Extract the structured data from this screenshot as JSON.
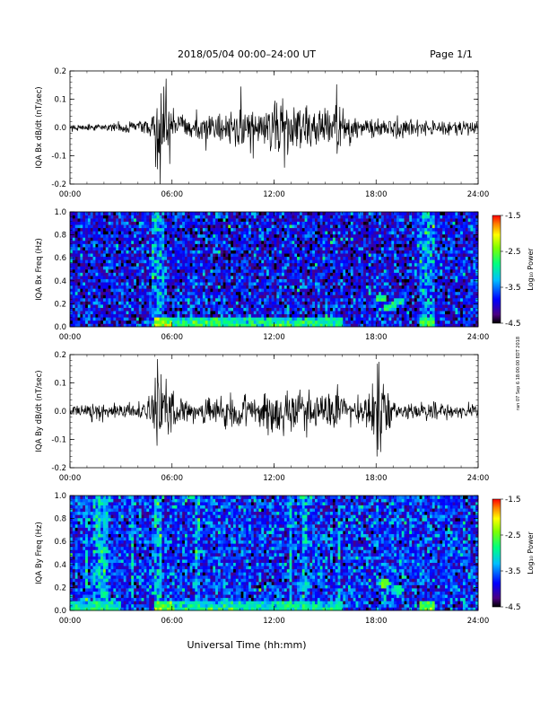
{
  "header": {
    "title": "2018/05/04  00:00–24:00 UT",
    "page": "Page 1/1"
  },
  "side_note": "ran 07 Sep 6 18:00:00 EDT 2018",
  "colorbar": {
    "label": "Log₁₀ Power",
    "ticks": [
      "-1.5",
      "-2.5",
      "-3.5",
      "-4.5"
    ],
    "range": [
      -4.5,
      -1.5
    ]
  },
  "xaxis_title": "Universal Time (hh:mm)",
  "chart_data": [
    {
      "type": "line",
      "ylabel": "IQA Bx dB/dt (nT/sec)",
      "xlim": [
        0,
        24
      ],
      "ylim": [
        -0.2,
        0.2
      ],
      "x_ticks": [
        "00:00",
        "06:00",
        "12:00",
        "18:00",
        "24:00"
      ],
      "y_ticks": [
        "0.2",
        "0.1",
        "0.0",
        "-0.1",
        "-0.2"
      ],
      "activity": [
        [
          0,
          0.012
        ],
        [
          2,
          0.012
        ],
        [
          3.5,
          0.02
        ],
        [
          4.8,
          0.03
        ],
        [
          5.2,
          0.19
        ],
        [
          5.6,
          0.12
        ],
        [
          6.2,
          0.05
        ],
        [
          7,
          0.03
        ],
        [
          8,
          0.05
        ],
        [
          9,
          0.06
        ],
        [
          10,
          0.07
        ],
        [
          11,
          0.06
        ],
        [
          12,
          0.09
        ],
        [
          12.5,
          0.11
        ],
        [
          13,
          0.07
        ],
        [
          14,
          0.07
        ],
        [
          15,
          0.08
        ],
        [
          15.8,
          0.1
        ],
        [
          16.2,
          0.05
        ],
        [
          17,
          0.03
        ],
        [
          18,
          0.04
        ],
        [
          20,
          0.03
        ],
        [
          22,
          0.025
        ],
        [
          24,
          0.02
        ]
      ]
    },
    {
      "type": "heatmap",
      "ylabel": "IQA Bx Freq (Hz)",
      "xlim": [
        0,
        24
      ],
      "ylim": [
        0,
        1.0
      ],
      "x_ticks": [
        "00:00",
        "06:00",
        "12:00",
        "18:00",
        "24:00"
      ],
      "y_ticks": [
        "1.0",
        "0.8",
        "0.6",
        "0.4",
        "0.2",
        "0.0"
      ],
      "background_level": -3.9,
      "enhanced_bands": [
        [
          4.8,
          5.6
        ],
        [
          20.5,
          21.5
        ]
      ],
      "low_freq_activity": [
        [
          5,
          6,
          -2.6
        ],
        [
          6,
          16,
          -3.1
        ],
        [
          20.5,
          21.5,
          -2.9
        ]
      ],
      "patches": [
        [
          18.3,
          0.25,
          -2.8
        ],
        [
          18.8,
          0.17,
          -2.9
        ],
        [
          19.3,
          0.22,
          -3.0
        ]
      ]
    },
    {
      "type": "line",
      "ylabel": "IQA By dB/dt (nT/sec)",
      "xlim": [
        0,
        24
      ],
      "ylim": [
        -0.2,
        0.2
      ],
      "x_ticks": [
        "00:00",
        "06:00",
        "12:00",
        "18:00",
        "24:00"
      ],
      "y_ticks": [
        "0.2",
        "0.1",
        "0.0",
        "-0.1",
        "-0.2"
      ],
      "activity": [
        [
          0,
          0.02
        ],
        [
          2,
          0.025
        ],
        [
          3.5,
          0.03
        ],
        [
          4.8,
          0.05
        ],
        [
          5.2,
          0.19
        ],
        [
          5.6,
          0.12
        ],
        [
          6.2,
          0.05
        ],
        [
          7,
          0.03
        ],
        [
          8,
          0.04
        ],
        [
          9,
          0.05
        ],
        [
          10,
          0.06
        ],
        [
          11,
          0.05
        ],
        [
          12,
          0.09
        ],
        [
          12.5,
          0.08
        ],
        [
          13,
          0.07
        ],
        [
          14,
          0.06
        ],
        [
          15,
          0.06
        ],
        [
          15.8,
          0.07
        ],
        [
          16.2,
          0.04
        ],
        [
          17,
          0.04
        ],
        [
          17.8,
          0.09
        ],
        [
          18.2,
          0.19
        ],
        [
          18.6,
          0.08
        ],
        [
          19,
          0.04
        ],
        [
          20,
          0.03
        ],
        [
          22,
          0.03
        ],
        [
          24,
          0.02
        ]
      ]
    },
    {
      "type": "heatmap",
      "ylabel": "IQA By Freq (Hz)",
      "xlim": [
        0,
        24
      ],
      "ylim": [
        0,
        1.0
      ],
      "x_ticks": [
        "00:00",
        "06:00",
        "12:00",
        "18:00",
        "24:00"
      ],
      "y_ticks": [
        "1.0",
        "0.8",
        "0.6",
        "0.4",
        "0.2",
        "0.0"
      ],
      "background_level": -3.75,
      "enhanced_bands": [
        [
          0.9,
          1.1
        ],
        [
          1.3,
          2.2
        ],
        [
          3.6,
          3.8
        ],
        [
          5.0,
          5.4
        ],
        [
          7.4,
          7.6
        ],
        [
          12.9,
          13.1
        ],
        [
          13.7,
          14.0
        ],
        [
          15.7,
          15.9
        ],
        [
          18.1,
          18.2
        ]
      ],
      "low_freq_activity": [
        [
          0,
          3,
          -3.2
        ],
        [
          5,
          6,
          -2.7
        ],
        [
          6,
          16,
          -3.2
        ],
        [
          20.5,
          21.5,
          -2.9
        ]
      ],
      "patches": [
        [
          18.5,
          0.24,
          -2.6
        ],
        [
          19.3,
          0.18,
          -2.9
        ]
      ]
    }
  ]
}
